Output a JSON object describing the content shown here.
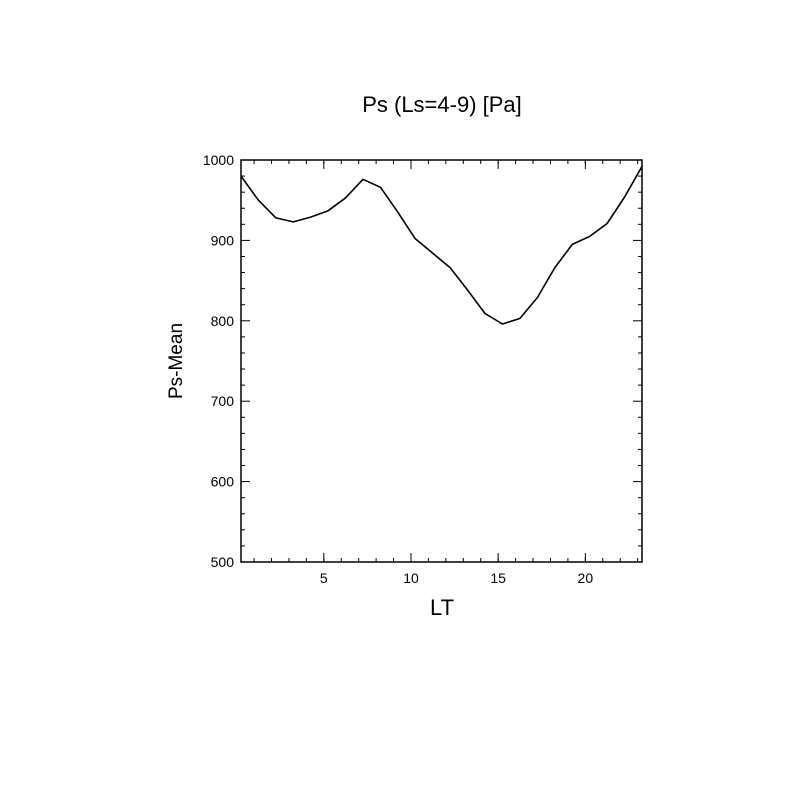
{
  "chart_data": {
    "type": "line",
    "title": "Ps (Ls=4-9) [Pa]",
    "xlabel": "LT",
    "ylabel": "Ps-Mean",
    "xlim": [
      0.25,
      23.25
    ],
    "ylim": [
      500,
      1000
    ],
    "x_ticks": [
      5,
      10,
      15,
      20
    ],
    "y_ticks": [
      500,
      600,
      700,
      800,
      900,
      1000
    ],
    "grid": false,
    "series": [
      {
        "x": [
          0.25,
          1.25,
          2.25,
          3.25,
          4.25,
          5.25,
          6.25,
          7.25,
          8.25,
          9.25,
          10.25,
          11.25,
          12.25,
          13.25,
          14.25,
          15.25,
          16.25,
          17.25,
          18.25,
          19.25,
          20.25,
          21.25,
          22.25,
          23.25
        ],
        "y": [
          980,
          950,
          928,
          923,
          929,
          937,
          953,
          976,
          966,
          935,
          902,
          884,
          866,
          838,
          809,
          796,
          803,
          829,
          866,
          895,
          905,
          921,
          954,
          992
        ]
      }
    ]
  }
}
